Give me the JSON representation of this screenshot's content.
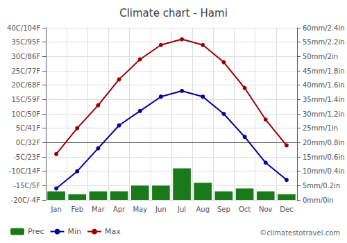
{
  "chart_data": {
    "type": "line",
    "title": "Climate chart - Hami",
    "categories": [
      "Jan",
      "Feb",
      "Mar",
      "Apr",
      "May",
      "Jun",
      "Jul",
      "Aug",
      "Sep",
      "Oct",
      "Nov",
      "Dec"
    ],
    "series": [
      {
        "name": "Prec",
        "type": "bar",
        "axis": "y2",
        "color": "#1a7a1a",
        "values": [
          3,
          2,
          3,
          3,
          5,
          5,
          11,
          6,
          3,
          4,
          3,
          2
        ]
      },
      {
        "name": "Min",
        "type": "line",
        "marker": "circle",
        "color": "#000099",
        "values": [
          -16,
          -10,
          -2,
          6,
          11,
          16,
          18,
          16,
          10,
          2,
          -7,
          -13
        ]
      },
      {
        "name": "Max",
        "type": "line",
        "marker": "circle",
        "color": "#990000",
        "values": [
          -4,
          5,
          13,
          22,
          29,
          34,
          36,
          34,
          28,
          19,
          8,
          -1
        ]
      }
    ],
    "ylim": [
      -20,
      40
    ],
    "yticks": [
      {
        "value": -20,
        "label": "-20C/-4F"
      },
      {
        "value": -15,
        "label": "-15C/5F"
      },
      {
        "value": -10,
        "label": "-10C/14F"
      },
      {
        "value": -5,
        "label": "-5C/23F"
      },
      {
        "value": 0,
        "label": "0C/32F"
      },
      {
        "value": 5,
        "label": "5C/41F"
      },
      {
        "value": 10,
        "label": "10C/50F"
      },
      {
        "value": 15,
        "label": "15C/59F"
      },
      {
        "value": 20,
        "label": "20C/68F"
      },
      {
        "value": 25,
        "label": "25C/77F"
      },
      {
        "value": 30,
        "label": "30C/86F"
      },
      {
        "value": 35,
        "label": "35C/95F"
      },
      {
        "value": 40,
        "label": "40C/104F"
      }
    ],
    "y2lim": [
      0,
      60
    ],
    "y2ticks": [
      {
        "value": 0,
        "label": "0mm/0in"
      },
      {
        "value": 5,
        "label": "5mm/0.2in"
      },
      {
        "value": 10,
        "label": "10mm/0.4in"
      },
      {
        "value": 15,
        "label": "15mm/0.6in"
      },
      {
        "value": 20,
        "label": "20mm/0.8in"
      },
      {
        "value": 25,
        "label": "25mm/1in"
      },
      {
        "value": 30,
        "label": "30mm/1.2in"
      },
      {
        "value": 35,
        "label": "35mm/1.4in"
      },
      {
        "value": 40,
        "label": "40mm/1.6in"
      },
      {
        "value": 45,
        "label": "45mm/1.8in"
      },
      {
        "value": 50,
        "label": "50mm/2in"
      },
      {
        "value": 55,
        "label": "55mm/2.2in"
      },
      {
        "value": 60,
        "label": "60mm/2.4in"
      }
    ],
    "grid": true,
    "legend": "bottom",
    "annotations": [
      "©climatestotravel.com"
    ]
  }
}
